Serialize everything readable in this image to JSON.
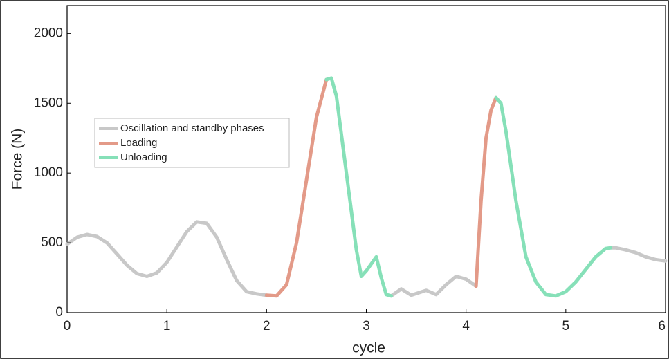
{
  "chart_data": {
    "type": "line",
    "xlabel": "cycle",
    "ylabel": "Force (N)",
    "xlim": [
      0,
      6
    ],
    "ylim": [
      0,
      2200
    ],
    "xticks": [
      0,
      1,
      2,
      3,
      4,
      5,
      6
    ],
    "yticks": [
      0,
      500,
      1000,
      1500,
      2000
    ],
    "legend": "upper left",
    "x": [
      0,
      0.1,
      0.2,
      0.3,
      0.4,
      0.5,
      0.6,
      0.7,
      0.8,
      0.9,
      1.0,
      1.1,
      1.2,
      1.3,
      1.4,
      1.5,
      1.6,
      1.7,
      1.8,
      1.9,
      2.0,
      2.1,
      2.2,
      2.3,
      2.4,
      2.5,
      2.6,
      2.65,
      2.7,
      2.8,
      2.9,
      2.95,
      3.0,
      3.05,
      3.1,
      3.15,
      3.2,
      3.25,
      3.35,
      3.45,
      3.6,
      3.7,
      3.8,
      3.9,
      4.0,
      4.1,
      4.15,
      4.2,
      4.25,
      4.3,
      4.35,
      4.4,
      4.5,
      4.6,
      4.7,
      4.8,
      4.9,
      5.0,
      5.1,
      5.2,
      5.3,
      5.4,
      5.45,
      5.5,
      5.6,
      5.7,
      5.8,
      5.9,
      6.0
    ],
    "series": [
      {
        "name": "Oscillation and standby phases",
        "color": "#c8c8c8",
        "values": [
          490,
          540,
          560,
          545,
          500,
          420,
          340,
          280,
          260,
          285,
          360,
          470,
          580,
          650,
          640,
          540,
          380,
          230,
          150,
          135,
          125,
          null,
          null,
          null,
          null,
          null,
          null,
          null,
          null,
          null,
          null,
          null,
          null,
          null,
          null,
          null,
          null,
          120,
          170,
          125,
          160,
          130,
          200,
          260,
          240,
          190,
          null,
          null,
          null,
          null,
          null,
          null,
          null,
          null,
          null,
          null,
          null,
          null,
          null,
          null,
          null,
          null,
          465,
          465,
          450,
          430,
          400,
          380,
          370
        ]
      },
      {
        "name": "Loading",
        "color": "#e39a88",
        "values": [
          null,
          null,
          null,
          null,
          null,
          null,
          null,
          null,
          null,
          null,
          null,
          null,
          null,
          null,
          null,
          null,
          null,
          null,
          null,
          null,
          125,
          120,
          200,
          500,
          950,
          1400,
          1670,
          null,
          null,
          null,
          null,
          null,
          null,
          null,
          null,
          null,
          null,
          null,
          null,
          null,
          null,
          null,
          null,
          null,
          null,
          190,
          800,
          1250,
          1450,
          1540,
          null,
          null,
          null,
          null,
          null,
          null,
          null,
          null,
          null,
          null,
          null,
          null,
          null,
          null,
          null,
          null,
          null,
          null,
          null
        ]
      },
      {
        "name": "Unloading",
        "color": "#86e0b8",
        "values": [
          null,
          null,
          null,
          null,
          null,
          null,
          null,
          null,
          null,
          null,
          null,
          null,
          null,
          null,
          null,
          null,
          null,
          null,
          null,
          null,
          null,
          null,
          null,
          null,
          null,
          null,
          1670,
          1680,
          1550,
          1000,
          450,
          260,
          300,
          350,
          400,
          250,
          130,
          120,
          null,
          null,
          null,
          null,
          null,
          null,
          null,
          null,
          null,
          null,
          null,
          1540,
          1500,
          1300,
          800,
          400,
          220,
          130,
          120,
          150,
          220,
          310,
          400,
          460,
          465,
          null,
          null,
          null,
          null,
          null,
          null
        ]
      }
    ]
  }
}
